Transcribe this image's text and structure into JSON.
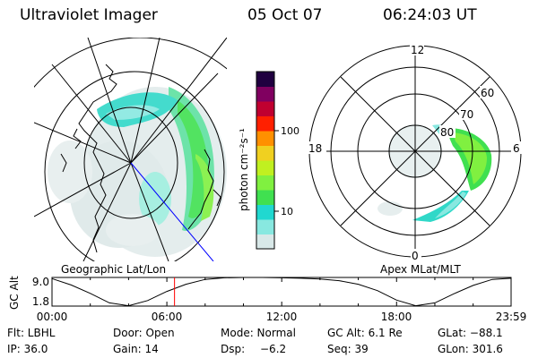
{
  "header": {
    "instrument": "Ultraviolet Imager",
    "date": "05 Oct 07",
    "time": "06:24:03 UT"
  },
  "geographic_panel": {
    "label": "Geographic Lat/Lon"
  },
  "apex_panel": {
    "label": "Apex MLat/MLT",
    "mlt_labels": [
      "12",
      "18",
      "6",
      "0"
    ],
    "lat_labels": [
      "60",
      "70",
      "80"
    ]
  },
  "colorbar": {
    "unit_label": "photon cm⁻²s⁻¹",
    "scale": "log",
    "tick_labels": [
      "100",
      "10"
    ],
    "colors": [
      "#d8e8e8",
      "#88e8e0",
      "#20d8d0",
      "#40e050",
      "#80f040",
      "#c0f020",
      "#f0d020",
      "#ff9000",
      "#ff2000",
      "#c00030",
      "#800060",
      "#200040"
    ]
  },
  "chart_data": [
    {
      "type": "line",
      "title": "",
      "ylabel": "GC Alt",
      "xlabel": "",
      "x_tick_labels": [
        "00:00",
        "06:00",
        "12:00",
        "18:00",
        "23:59"
      ],
      "y_tick_labels": [
        "9.0",
        "1.8"
      ],
      "ylim": [
        1.8,
        9.0
      ],
      "series": [
        {
          "x": [
            "00:00",
            "01:00",
            "02:00",
            "03:00",
            "04:00",
            "05:00",
            "06:00",
            "07:00",
            "08:00",
            "09:00",
            "10:00",
            "11:00",
            "12:00",
            "13:00",
            "14:00",
            "15:00",
            "16:00",
            "17:00",
            "18:00",
            "19:00",
            "20:00",
            "21:00",
            "22:00",
            "23:00",
            "23:59"
          ],
          "y": [
            8.7,
            7.1,
            5.0,
            2.6,
            1.9,
            3.2,
            5.5,
            7.3,
            8.5,
            8.9,
            9.0,
            9.0,
            8.9,
            8.8,
            8.6,
            8.2,
            7.3,
            5.7,
            3.3,
            1.9,
            2.6,
            4.9,
            7.0,
            8.5,
            8.8
          ]
        }
      ],
      "marker_time": "06:24",
      "marker_color": "#ff0000"
    }
  ],
  "footer": {
    "row1": [
      "Flt: LBHL",
      "Door: Open",
      "Mode: Normal",
      "GC Alt: 6.1 Re",
      "GLat: −88.1"
    ],
    "row2": [
      "IP: 36.0",
      "Gain: 14",
      "Dsp:",
      "−6.2",
      "Seq: 39",
      "GLon: 301.6"
    ]
  }
}
